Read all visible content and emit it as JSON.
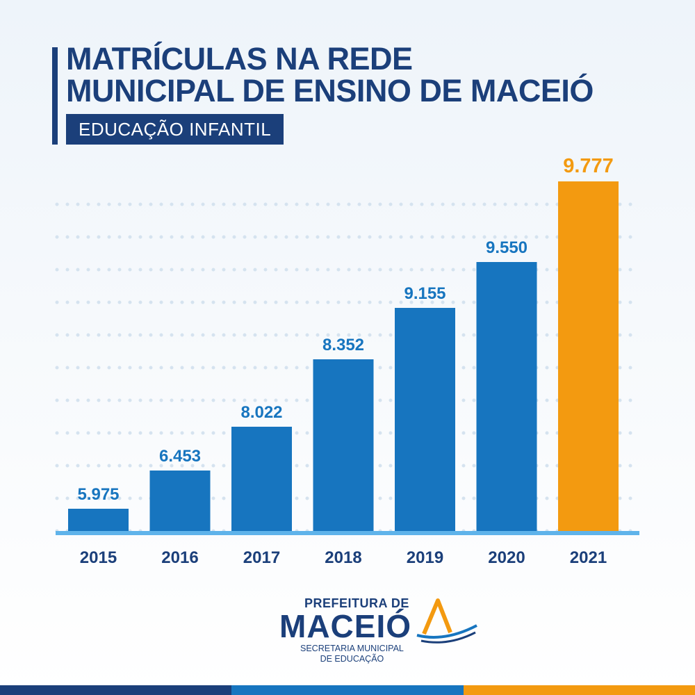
{
  "header": {
    "title": "MATRÍCULAS NA REDE\nMUNICIPAL DE ENSINO DE MACEIÓ",
    "subtitle": "EDUCAÇÃO INFANTIL"
  },
  "chart_data": {
    "type": "bar",
    "title": "MATRÍCULAS NA REDE MUNICIPAL DE ENSINO DE MACEIÓ",
    "subtitle": "EDUCAÇÃO INFANTIL",
    "categories": [
      "2015",
      "2016",
      "2017",
      "2018",
      "2019",
      "2020",
      "2021"
    ],
    "values": [
      5975,
      6453,
      8022,
      8352,
      9155,
      9550,
      9777
    ],
    "value_labels": [
      "5.975",
      "6.453",
      "8.022",
      "8.352",
      "9.155",
      "9.550",
      "9.777"
    ],
    "highlight_index": 6,
    "colors": {
      "bar": "#1775bf",
      "highlight": "#f39a10",
      "axis": "#5fb3ea",
      "dots": "#d5e3ef",
      "category": "#1b3f7a"
    },
    "grid": true
  },
  "logo": {
    "top": "PREFEITURA DE",
    "main": "MACEIÓ",
    "sub": "SECRETARIA MUNICIPAL\nDE EDUCAÇÃO"
  },
  "footer_colors": [
    "#1b3f7a",
    "#1775bf",
    "#f39a10"
  ]
}
